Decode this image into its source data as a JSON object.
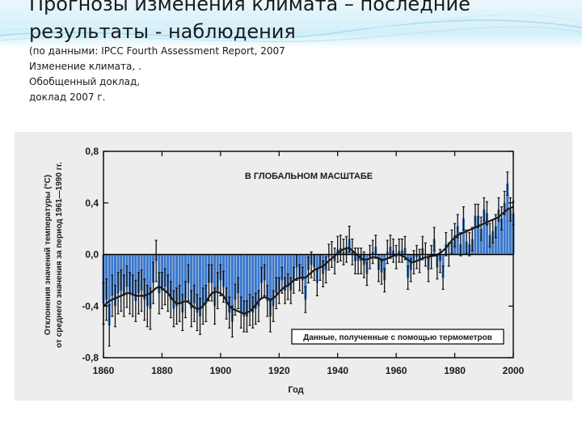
{
  "slide": {
    "title": "Прогнозы изменения климата – последние результаты - наблюдения",
    "citation": [
      "(по данными:  IPCC Fourth Assessment Report, 2007",
      "Изменение климата, .",
      "Обобщенный доклад,",
      "доклад 2007 г."
    ]
  },
  "colors": {
    "bar": "#3a78cc",
    "trend": "#1a1a1a",
    "background_top": "#d3eff9",
    "panel": "#ededed"
  },
  "chart_data": {
    "type": "bar",
    "title": "В ГЛОБАЛЬНОМ МАСШТАБЕ",
    "legend": "Данные, полученные с помощью термометров",
    "legend_position": "bottom-right",
    "xlabel": "Год",
    "ylabel_lines": [
      "Отклонения значений температуры (°C)",
      "от среднего значения за период 1961—1990 гг."
    ],
    "xlim": [
      1860,
      2000
    ],
    "ylim": [
      -0.8,
      0.8
    ],
    "x_ticks": [
      "1860",
      "1880",
      "1900",
      "1920",
      "1940",
      "1960",
      "1980",
      "2000"
    ],
    "y_ticks": [
      "0,8",
      "0,4",
      "0,0",
      "-0,4",
      "-0,8"
    ],
    "grid": false,
    "years": [
      1860,
      1861,
      1862,
      1863,
      1864,
      1865,
      1866,
      1867,
      1868,
      1869,
      1870,
      1871,
      1872,
      1873,
      1874,
      1875,
      1876,
      1877,
      1878,
      1879,
      1880,
      1881,
      1882,
      1883,
      1884,
      1885,
      1886,
      1887,
      1888,
      1889,
      1890,
      1891,
      1892,
      1893,
      1894,
      1895,
      1896,
      1897,
      1898,
      1899,
      1900,
      1901,
      1902,
      1903,
      1904,
      1905,
      1906,
      1907,
      1908,
      1909,
      1910,
      1911,
      1912,
      1913,
      1914,
      1915,
      1916,
      1917,
      1918,
      1919,
      1920,
      1921,
      1922,
      1923,
      1924,
      1925,
      1926,
      1927,
      1928,
      1929,
      1930,
      1931,
      1932,
      1933,
      1934,
      1935,
      1936,
      1937,
      1938,
      1939,
      1940,
      1941,
      1942,
      1943,
      1944,
      1945,
      1946,
      1947,
      1948,
      1949,
      1950,
      1951,
      1952,
      1953,
      1954,
      1955,
      1956,
      1957,
      1958,
      1959,
      1960,
      1961,
      1962,
      1963,
      1964,
      1965,
      1966,
      1967,
      1968,
      1969,
      1970,
      1971,
      1972,
      1973,
      1974,
      1975,
      1976,
      1977,
      1978,
      1979,
      1980,
      1981,
      1982,
      1983,
      1984,
      1985,
      1986,
      1987,
      1988,
      1989,
      1990,
      1991,
      1992,
      1993,
      1994,
      1995,
      1996,
      1997,
      1998,
      1999,
      2000
    ],
    "anomaly": [
      -0.38,
      -0.35,
      -0.55,
      -0.32,
      -0.4,
      -0.3,
      -0.28,
      -0.32,
      -0.25,
      -0.3,
      -0.32,
      -0.36,
      -0.3,
      -0.28,
      -0.35,
      -0.4,
      -0.42,
      -0.22,
      -0.05,
      -0.3,
      -0.28,
      -0.25,
      -0.3,
      -0.35,
      -0.42,
      -0.4,
      -0.38,
      -0.45,
      -0.35,
      -0.22,
      -0.42,
      -0.38,
      -0.45,
      -0.48,
      -0.4,
      -0.38,
      -0.22,
      -0.22,
      -0.4,
      -0.28,
      -0.2,
      -0.25,
      -0.38,
      -0.45,
      -0.52,
      -0.35,
      -0.3,
      -0.45,
      -0.48,
      -0.48,
      -0.43,
      -0.45,
      -0.42,
      -0.4,
      -0.22,
      -0.2,
      -0.36,
      -0.48,
      -0.4,
      -0.3,
      -0.28,
      -0.2,
      -0.28,
      -0.25,
      -0.28,
      -0.2,
      -0.1,
      -0.18,
      -0.2,
      -0.35,
      -0.12,
      -0.08,
      -0.1,
      -0.22,
      -0.1,
      -0.15,
      -0.12,
      -0.02,
      0.0,
      -0.05,
      0.04,
      0.05,
      0.02,
      0.04,
      0.12,
      0.02,
      -0.05,
      -0.05,
      -0.05,
      -0.08,
      -0.15,
      -0.02,
      0.02,
      0.06,
      -0.12,
      -0.14,
      -0.2,
      0.02,
      0.06,
      0.03,
      -0.02,
      0.03,
      0.03,
      0.05,
      -0.18,
      -0.12,
      -0.06,
      -0.02,
      -0.05,
      0.05,
      0.0,
      -0.12,
      -0.02,
      0.12,
      -0.1,
      -0.05,
      -0.18,
      0.08,
      0.0,
      0.1,
      0.15,
      0.22,
      0.08,
      0.28,
      0.1,
      0.08,
      0.12,
      0.3,
      0.3,
      0.2,
      0.35,
      0.32,
      0.15,
      0.18,
      0.22,
      0.35,
      0.28,
      0.4,
      0.55,
      0.35,
      0.32
    ],
    "smoothed": [
      -0.4,
      -0.38,
      -0.36,
      -0.35,
      -0.34,
      -0.33,
      -0.32,
      -0.31,
      -0.3,
      -0.3,
      -0.31,
      -0.32,
      -0.32,
      -0.32,
      -0.32,
      -0.31,
      -0.3,
      -0.28,
      -0.26,
      -0.25,
      -0.26,
      -0.28,
      -0.3,
      -0.33,
      -0.36,
      -0.38,
      -0.38,
      -0.37,
      -0.36,
      -0.37,
      -0.39,
      -0.41,
      -0.42,
      -0.42,
      -0.4,
      -0.37,
      -0.33,
      -0.3,
      -0.29,
      -0.29,
      -0.3,
      -0.32,
      -0.36,
      -0.4,
      -0.42,
      -0.43,
      -0.44,
      -0.45,
      -0.46,
      -0.45,
      -0.44,
      -0.42,
      -0.39,
      -0.36,
      -0.34,
      -0.33,
      -0.34,
      -0.35,
      -0.34,
      -0.32,
      -0.29,
      -0.27,
      -0.25,
      -0.24,
      -0.22,
      -0.2,
      -0.19,
      -0.18,
      -0.18,
      -0.18,
      -0.16,
      -0.14,
      -0.12,
      -0.11,
      -0.1,
      -0.09,
      -0.07,
      -0.05,
      -0.03,
      -0.01,
      0.01,
      0.03,
      0.04,
      0.05,
      0.05,
      0.03,
      0.01,
      -0.01,
      -0.03,
      -0.04,
      -0.04,
      -0.03,
      -0.02,
      -0.02,
      -0.03,
      -0.04,
      -0.04,
      -0.03,
      -0.02,
      -0.01,
      0.0,
      0.0,
      -0.01,
      -0.02,
      -0.04,
      -0.06,
      -0.06,
      -0.05,
      -0.04,
      -0.03,
      -0.02,
      -0.02,
      -0.01,
      -0.01,
      0.0,
      0.01,
      0.03,
      0.05,
      0.08,
      0.11,
      0.13,
      0.15,
      0.16,
      0.17,
      0.18,
      0.19,
      0.2,
      0.21,
      0.22,
      0.23,
      0.24,
      0.25,
      0.26,
      0.27,
      0.28,
      0.29,
      0.31,
      0.33,
      0.35,
      0.36,
      0.37
    ],
    "error_half_width": [
      0.16,
      0.16,
      0.16,
      0.16,
      0.16,
      0.16,
      0.16,
      0.16,
      0.16,
      0.16,
      0.16,
      0.16,
      0.16,
      0.16,
      0.16,
      0.16,
      0.16,
      0.16,
      0.16,
      0.16,
      0.14,
      0.14,
      0.14,
      0.14,
      0.14,
      0.14,
      0.14,
      0.14,
      0.14,
      0.14,
      0.14,
      0.14,
      0.14,
      0.14,
      0.14,
      0.14,
      0.14,
      0.14,
      0.14,
      0.14,
      0.12,
      0.12,
      0.12,
      0.12,
      0.12,
      0.12,
      0.12,
      0.12,
      0.12,
      0.12,
      0.12,
      0.12,
      0.12,
      0.12,
      0.12,
      0.12,
      0.12,
      0.12,
      0.12,
      0.12,
      0.1,
      0.1,
      0.1,
      0.1,
      0.1,
      0.1,
      0.1,
      0.1,
      0.1,
      0.1,
      0.1,
      0.1,
      0.1,
      0.1,
      0.1,
      0.1,
      0.1,
      0.1,
      0.1,
      0.1,
      0.1,
      0.1,
      0.1,
      0.1,
      0.1,
      0.1,
      0.1,
      0.1,
      0.1,
      0.1,
      0.09,
      0.09,
      0.09,
      0.09,
      0.09,
      0.09,
      0.09,
      0.09,
      0.09,
      0.09,
      0.09,
      0.09,
      0.09,
      0.09,
      0.09,
      0.09,
      0.09,
      0.09,
      0.09,
      0.09,
      0.09,
      0.09,
      0.09,
      0.09,
      0.09,
      0.09,
      0.09,
      0.09,
      0.09,
      0.09,
      0.09,
      0.09,
      0.09,
      0.09,
      0.09,
      0.09,
      0.09,
      0.09,
      0.09,
      0.09,
      0.09,
      0.09,
      0.09,
      0.09,
      0.09,
      0.09,
      0.09,
      0.09,
      0.09,
      0.09,
      0.09
    ]
  }
}
